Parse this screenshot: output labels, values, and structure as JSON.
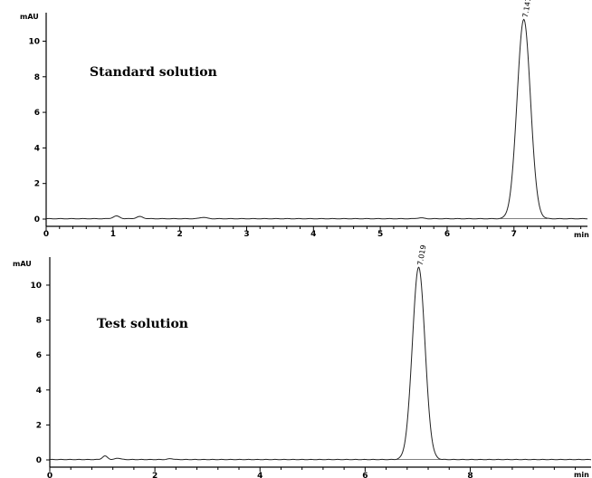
{
  "chart_data": [
    {
      "type": "line",
      "ylabel": "mAU",
      "xlabel": "min",
      "annotation": "Standard solution",
      "xlim": [
        0,
        8.1
      ],
      "ylim": [
        0,
        11.5
      ],
      "yticks": [
        0,
        2,
        4,
        6,
        8,
        10
      ],
      "xticks": [
        0,
        1,
        2,
        3,
        4,
        5,
        6,
        7
      ],
      "peak": {
        "label": "7.147",
        "rt": 7.147,
        "height": 11.2,
        "width": 0.1
      },
      "baseline_bumps": [
        [
          1.05,
          0.15
        ],
        [
          1.4,
          0.12
        ],
        [
          2.35,
          0.08
        ],
        [
          5.6,
          0.05
        ]
      ]
    },
    {
      "type": "line",
      "ylabel": "mAU",
      "xlabel": "min",
      "annotation": "Test solution",
      "xlim": [
        0,
        10.3
      ],
      "ylim": [
        0,
        11.5
      ],
      "yticks": [
        0,
        2,
        4,
        6,
        8,
        10
      ],
      "xticks": [
        0,
        2,
        4,
        6,
        8
      ],
      "peak": {
        "label": "7.019",
        "rt": 7.019,
        "height": 11.0,
        "width": 0.12
      },
      "baseline_bumps": [
        [
          1.05,
          0.2
        ],
        [
          1.3,
          0.08
        ],
        [
          2.3,
          0.05
        ]
      ]
    }
  ]
}
